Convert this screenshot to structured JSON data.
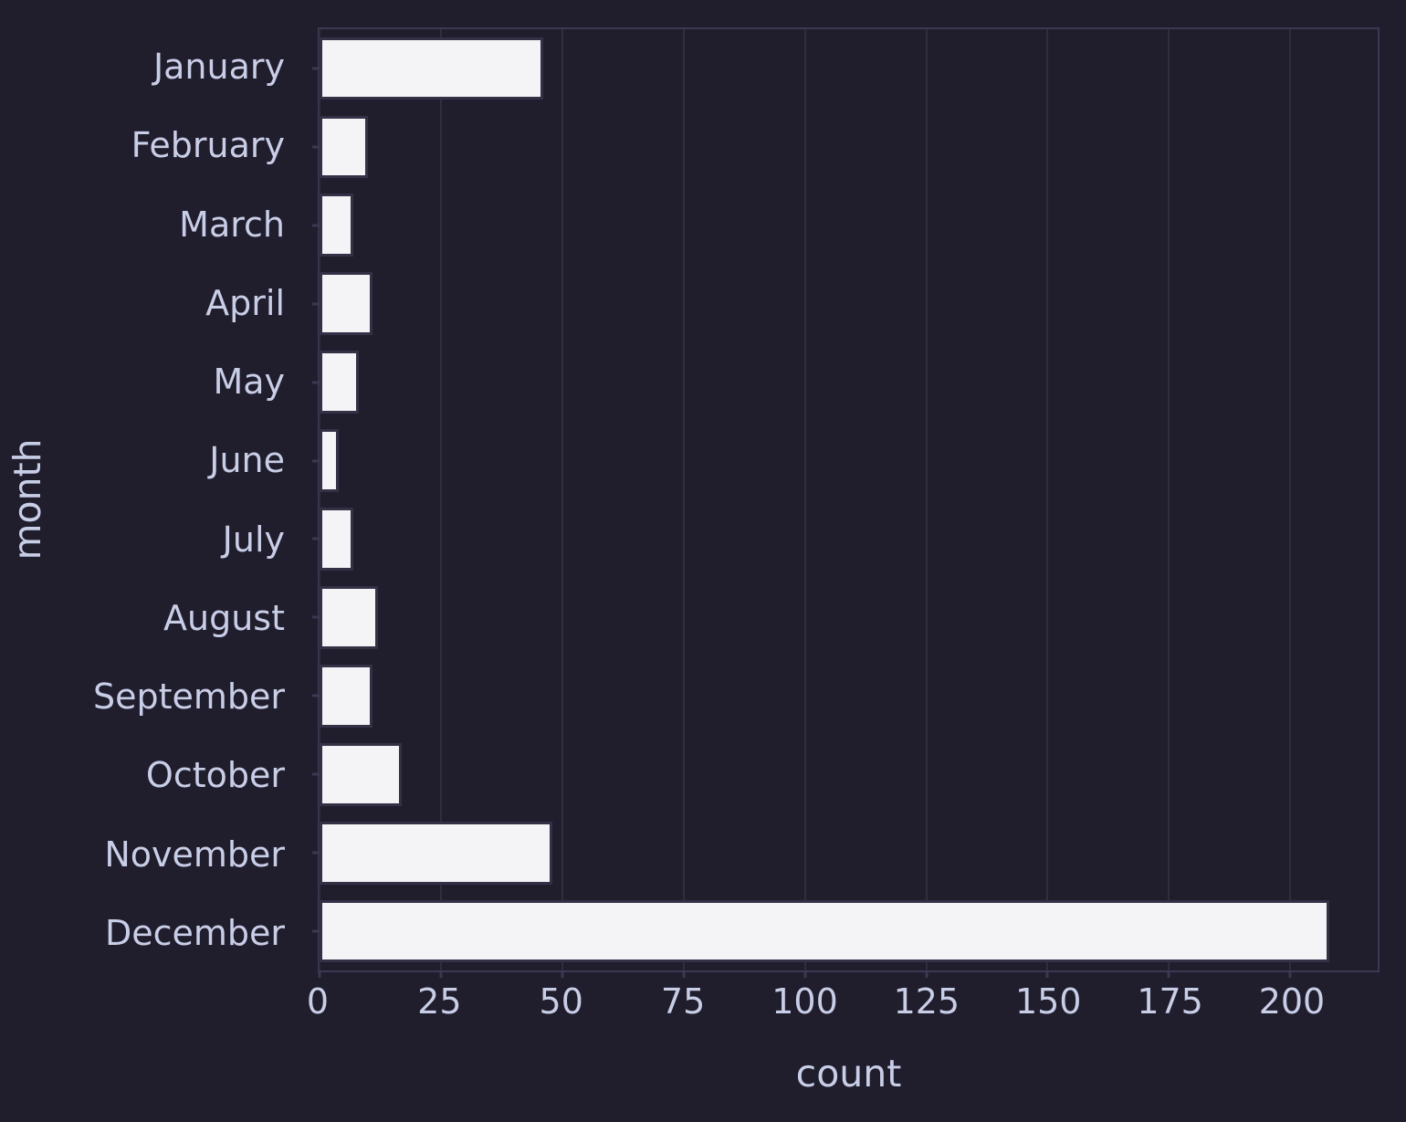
{
  "colors": {
    "background": "#201d2d",
    "gridline": "#302d42",
    "spine": "#3b3852",
    "bar_fill": "#f4f4f6",
    "bar_edge": "#343147",
    "text": "#c9cee7"
  },
  "chart_data": {
    "type": "bar",
    "orientation": "horizontal",
    "title": "",
    "xlabel": "count",
    "ylabel": "month",
    "categories": [
      "January",
      "February",
      "March",
      "April",
      "May",
      "June",
      "July",
      "August",
      "September",
      "October",
      "November",
      "December"
    ],
    "values": [
      46,
      10,
      7,
      11,
      8,
      4,
      7,
      12,
      11,
      17,
      48,
      208
    ],
    "xlim": [
      0,
      218
    ],
    "xticks": [
      0,
      25,
      50,
      75,
      100,
      125,
      150,
      175,
      200
    ],
    "grid": "vertical",
    "legend": "none",
    "bar_relative_height": 0.8
  }
}
